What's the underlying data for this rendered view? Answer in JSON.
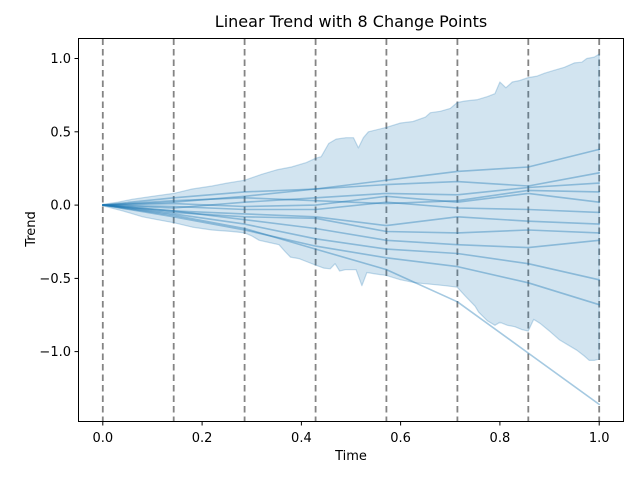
{
  "window": {
    "background": "#ffffff"
  },
  "chart_data": {
    "type": "line",
    "title": "Linear Trend with 8 Change Points",
    "xlabel": "Time",
    "ylabel": "Trend",
    "xlim": [
      -0.05,
      1.05
    ],
    "ylim": [
      -1.48,
      1.14
    ],
    "x_ticks": [
      0.0,
      0.2,
      0.4,
      0.6,
      0.8,
      1.0
    ],
    "x_tick_labels": [
      "0.0",
      "0.2",
      "0.4",
      "0.6",
      "0.8",
      "1.0"
    ],
    "y_ticks": [
      -1.0,
      -0.5,
      0.0,
      0.5,
      1.0
    ],
    "y_tick_labels": [
      "−1.0",
      "−0.5",
      "0.0",
      "0.5",
      "1.0"
    ],
    "grid": false,
    "legend": null,
    "change_points": [
      0.0,
      0.1429,
      0.2857,
      0.4286,
      0.5714,
      0.7143,
      0.8571,
      1.0
    ],
    "knots": [
      0.0,
      0.1429,
      0.2857,
      0.4286,
      0.5714,
      0.7143,
      0.8571,
      1.0
    ],
    "series": [
      {
        "values": [
          0,
          0.02,
          0.06,
          0.11,
          0.17,
          0.23,
          0.26,
          0.38
        ]
      },
      {
        "values": [
          0,
          0.05,
          0.09,
          0.11,
          0.14,
          0.16,
          0.13,
          0.22
        ]
      },
      {
        "values": [
          0,
          -0.02,
          0.02,
          0.05,
          0.08,
          0.07,
          0.12,
          0.15
        ]
      },
      {
        "values": [
          0,
          0.03,
          0.05,
          0.03,
          0.01,
          0.03,
          0.1,
          0.09
        ]
      },
      {
        "values": [
          0,
          0.01,
          -0.01,
          0.0,
          0.06,
          0.02,
          0.08,
          0.02
        ]
      },
      {
        "values": [
          0,
          -0.01,
          -0.03,
          -0.03,
          0.02,
          -0.02,
          -0.03,
          -0.05
        ]
      },
      {
        "values": [
          0,
          -0.04,
          -0.06,
          -0.08,
          -0.14,
          -0.08,
          -0.11,
          -0.13
        ]
      },
      {
        "values": [
          0,
          -0.05,
          -0.08,
          -0.09,
          -0.18,
          -0.19,
          -0.17,
          -0.19
        ]
      },
      {
        "values": [
          0,
          -0.04,
          -0.1,
          -0.16,
          -0.24,
          -0.27,
          -0.29,
          -0.24
        ]
      },
      {
        "values": [
          0,
          -0.06,
          -0.13,
          -0.23,
          -0.3,
          -0.33,
          -0.4,
          -0.51
        ]
      },
      {
        "values": [
          0,
          -0.08,
          -0.17,
          -0.28,
          -0.36,
          -0.42,
          -0.53,
          -0.68
        ]
      },
      {
        "values": [
          0,
          -0.07,
          -0.16,
          -0.3,
          -0.44,
          -0.66,
          -1.01,
          -1.36
        ]
      }
    ],
    "band": {
      "upper": [
        [
          0,
          0.005
        ],
        [
          0.03,
          0.02
        ],
        [
          0.06,
          0.04
        ],
        [
          0.1,
          0.06
        ],
        [
          0.143,
          0.08
        ],
        [
          0.18,
          0.11
        ],
        [
          0.22,
          0.13
        ],
        [
          0.25,
          0.15
        ],
        [
          0.286,
          0.17
        ],
        [
          0.32,
          0.21
        ],
        [
          0.35,
          0.24
        ],
        [
          0.38,
          0.26
        ],
        [
          0.41,
          0.29
        ],
        [
          0.429,
          0.32
        ],
        [
          0.44,
          0.33
        ],
        [
          0.455,
          0.42
        ],
        [
          0.47,
          0.45
        ],
        [
          0.49,
          0.46
        ],
        [
          0.505,
          0.46
        ],
        [
          0.515,
          0.39
        ],
        [
          0.525,
          0.46
        ],
        [
          0.535,
          0.5
        ],
        [
          0.571,
          0.53
        ],
        [
          0.6,
          0.56
        ],
        [
          0.625,
          0.57
        ],
        [
          0.65,
          0.6
        ],
        [
          0.66,
          0.63
        ],
        [
          0.68,
          0.64
        ],
        [
          0.7,
          0.66
        ],
        [
          0.714,
          0.7
        ],
        [
          0.73,
          0.71
        ],
        [
          0.755,
          0.72
        ],
        [
          0.775,
          0.74
        ],
        [
          0.79,
          0.76
        ],
        [
          0.8,
          0.84
        ],
        [
          0.812,
          0.8
        ],
        [
          0.825,
          0.84
        ],
        [
          0.84,
          0.85
        ],
        [
          0.857,
          0.87
        ],
        [
          0.875,
          0.88
        ],
        [
          0.89,
          0.9
        ],
        [
          0.91,
          0.92
        ],
        [
          0.93,
          0.94
        ],
        [
          0.95,
          0.97
        ],
        [
          0.965,
          0.975
        ],
        [
          0.975,
          1.0
        ],
        [
          0.99,
          1.01
        ],
        [
          1.0,
          1.03
        ]
      ],
      "lower": [
        [
          0,
          -0.005
        ],
        [
          0.04,
          -0.04
        ],
        [
          0.08,
          -0.08
        ],
        [
          0.11,
          -0.1
        ],
        [
          0.143,
          -0.12
        ],
        [
          0.18,
          -0.15
        ],
        [
          0.22,
          -0.17
        ],
        [
          0.26,
          -0.18
        ],
        [
          0.286,
          -0.19
        ],
        [
          0.3,
          -0.21
        ],
        [
          0.315,
          -0.24
        ],
        [
          0.335,
          -0.255
        ],
        [
          0.355,
          -0.27
        ],
        [
          0.368,
          -0.32
        ],
        [
          0.378,
          -0.355
        ],
        [
          0.395,
          -0.365
        ],
        [
          0.41,
          -0.385
        ],
        [
          0.429,
          -0.41
        ],
        [
          0.445,
          -0.43
        ],
        [
          0.458,
          -0.435
        ],
        [
          0.468,
          -0.4
        ],
        [
          0.477,
          -0.45
        ],
        [
          0.49,
          -0.44
        ],
        [
          0.51,
          -0.44
        ],
        [
          0.522,
          -0.55
        ],
        [
          0.532,
          -0.46
        ],
        [
          0.55,
          -0.47
        ],
        [
          0.571,
          -0.48
        ],
        [
          0.6,
          -0.51
        ],
        [
          0.63,
          -0.53
        ],
        [
          0.66,
          -0.54
        ],
        [
          0.69,
          -0.55
        ],
        [
          0.714,
          -0.56
        ],
        [
          0.73,
          -0.62
        ],
        [
          0.75,
          -0.69
        ],
        [
          0.757,
          -0.73
        ],
        [
          0.775,
          -0.79
        ],
        [
          0.79,
          -0.82
        ],
        [
          0.8,
          -0.8
        ],
        [
          0.815,
          -0.82
        ],
        [
          0.83,
          -0.83
        ],
        [
          0.845,
          -0.85
        ],
        [
          0.857,
          -0.86
        ],
        [
          0.868,
          -0.78
        ],
        [
          0.882,
          -0.81
        ],
        [
          0.9,
          -0.86
        ],
        [
          0.92,
          -0.92
        ],
        [
          0.94,
          -0.96
        ],
        [
          0.955,
          -0.99
        ],
        [
          0.97,
          -1.03
        ],
        [
          0.98,
          -1.06
        ],
        [
          0.99,
          -1.06
        ],
        [
          1.0,
          -1.05
        ]
      ]
    },
    "colors": {
      "line": "#1f77b4",
      "band_fill": "#1f77b4",
      "changepoint_line": "#848484",
      "text": "#000000",
      "spine": "#000000"
    },
    "style": {
      "line_alpha": 0.4,
      "band_alpha": 0.2,
      "band_edge_alpha": 0.25
    }
  }
}
